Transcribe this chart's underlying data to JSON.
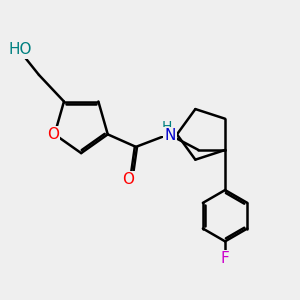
{
  "background_color": "#efefef",
  "atom_colors": {
    "O": "#ff0000",
    "N": "#0000cc",
    "F": "#cc00cc",
    "H_O": "#008080",
    "H_N": "#008080",
    "C": "#000000"
  },
  "bond_lw": 1.8,
  "font_size_atoms": 11,
  "fig_size": [
    3.0,
    3.0
  ],
  "dpi": 100,
  "xlim": [
    0.0,
    9.5
  ],
  "ylim": [
    0.5,
    9.5
  ]
}
